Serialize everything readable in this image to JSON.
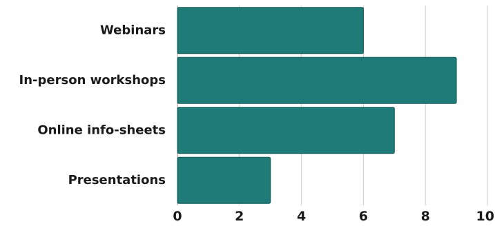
{
  "chart_data": {
    "type": "bar",
    "orientation": "horizontal",
    "title": "",
    "xlabel": "",
    "ylabel": "",
    "categories": [
      "Webinars",
      "In-person workshops",
      "Online info-sheets",
      "Presentations"
    ],
    "values": [
      6,
      9,
      7,
      3
    ],
    "xlim": [
      0,
      10
    ],
    "ticks": [
      0,
      2,
      4,
      6,
      8,
      10
    ],
    "grid": "vertical",
    "legend": "none",
    "bar_color": "#1e7b78",
    "bar_edge_color": "#0f5553"
  }
}
